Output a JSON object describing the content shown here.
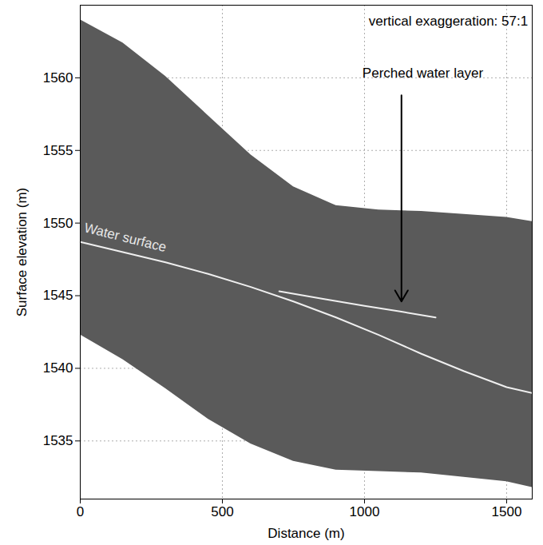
{
  "chart_data": {
    "type": "area",
    "x_label": "Distance (m)",
    "y_label": "Surface elevation (m)",
    "xlim": [
      0,
      1590
    ],
    "ylim": [
      1531,
      1565
    ],
    "xticks": [
      0,
      500,
      1000,
      1500
    ],
    "yticks": [
      1535,
      1540,
      1545,
      1550,
      1555,
      1560
    ],
    "grid": true,
    "band": {
      "color": "#5a5a5a",
      "x": [
        0,
        150,
        300,
        450,
        600,
        750,
        900,
        1050,
        1200,
        1350,
        1500,
        1590
      ],
      "top": [
        1564.0,
        1562.4,
        1560.1,
        1557.4,
        1554.7,
        1552.5,
        1551.2,
        1550.9,
        1550.8,
        1550.6,
        1550.4,
        1550.1
      ],
      "bottom": [
        1542.3,
        1540.6,
        1538.6,
        1536.5,
        1534.8,
        1533.6,
        1533.0,
        1532.9,
        1532.8,
        1532.5,
        1532.2,
        1531.8
      ]
    },
    "reflectors": [
      {
        "label": "Water surface",
        "color": "#ffffff",
        "x": [
          0,
          150,
          300,
          450,
          600,
          750,
          900,
          1050,
          1200,
          1350,
          1500,
          1590
        ],
        "values": [
          1548.7,
          1548.0,
          1547.3,
          1546.5,
          1545.6,
          1544.6,
          1543.5,
          1542.3,
          1541.0,
          1539.8,
          1538.7,
          1538.3
        ],
        "label_x": 15,
        "label_y": 1549.7
      },
      {
        "label": "Perched water layer",
        "color": "#ffffff",
        "x": [
          700,
          850,
          1000,
          1130,
          1250
        ],
        "values": [
          1545.3,
          1544.8,
          1544.3,
          1543.9,
          1543.5
        ],
        "label_x": 1205,
        "label_y": 1560.3,
        "arrow_from": [
          1130,
          1558.8
        ],
        "arrow_to": [
          1130,
          1544.6
        ]
      }
    ],
    "annotations": [
      {
        "text": "vertical exaggeration: 57:1",
        "x": 1575,
        "y": 1563.9
      }
    ]
  }
}
